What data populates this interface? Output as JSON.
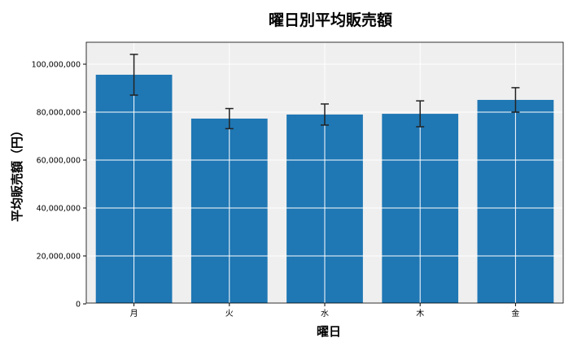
{
  "chart_data": {
    "type": "bar",
    "title": "曜日別平均販売額",
    "xlabel": "曜日",
    "ylabel": "平均販売額（円）",
    "categories": [
      "月",
      "火",
      "水",
      "木",
      "金"
    ],
    "values": [
      95600000,
      77300000,
      79000000,
      79300000,
      85100000
    ],
    "errors": [
      8500000,
      4200000,
      4400000,
      5400000,
      5100000
    ],
    "ylim": [
      0,
      109000000
    ],
    "yticks": [
      0,
      20000000,
      40000000,
      60000000,
      80000000,
      100000000
    ],
    "ytick_labels": [
      "0",
      "20,000,000",
      "40,000,000",
      "60,000,000",
      "80,000,000",
      "100,000,000"
    ],
    "grid": true,
    "colors": {
      "bar": "#1f77b4",
      "background": "#ebebeb",
      "grid": "#ffffff",
      "error": "#000000"
    }
  }
}
